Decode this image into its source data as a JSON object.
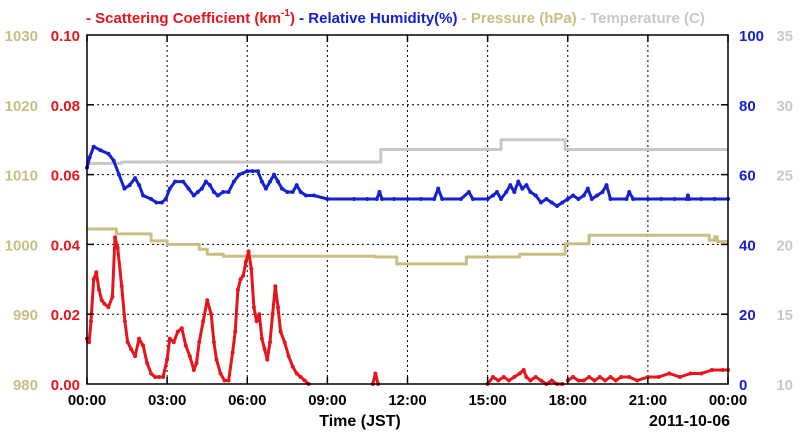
{
  "legend": {
    "scattering": "Scattering Coefficient (km",
    "scattering_sup": "-1",
    "scattering_close": ")",
    "humidity": "Relative Humidity(%)",
    "pressure": "Pressure (hPa)",
    "temperature": "Temperature (",
    "temperature_unit": "C)"
  },
  "footer": {
    "xlabel": "Time (JST)",
    "date": "2011-10-06"
  },
  "chart_data": {
    "type": "line",
    "x_ticks": [
      "00:00",
      "03:00",
      "06:00",
      "09:00",
      "12:00",
      "15:00",
      "18:00",
      "21:00",
      "00:00"
    ],
    "xlim_hours": [
      0,
      24
    ],
    "axes": {
      "scattering": {
        "ticks": [
          "0.00",
          "0.02",
          "0.04",
          "0.06",
          "0.08",
          "0.10"
        ],
        "ylim": [
          0,
          0.1
        ],
        "color": "#e8141c",
        "side": "left-inner"
      },
      "pressure": {
        "ticks": [
          "980",
          "990",
          "1000",
          "1010",
          "1020",
          "1030"
        ],
        "ylim": [
          980,
          1030
        ],
        "color": "#c8bd82",
        "side": "left-outer"
      },
      "humidity": {
        "ticks": [
          "0",
          "20",
          "40",
          "60",
          "80",
          "100"
        ],
        "ylim": [
          0,
          100
        ],
        "color": "#1420d2",
        "side": "right-inner"
      },
      "temperature": {
        "ticks": [
          "10",
          "15",
          "20",
          "25",
          "30",
          "35"
        ],
        "ylim": [
          10,
          35
        ],
        "color": "#c8c8c8",
        "side": "right-outer"
      }
    },
    "grid": true,
    "series": [
      {
        "key": "pressure",
        "name": "Pressure (hPa)",
        "color": "#c8bd82",
        "markers": false,
        "points": [
          [
            0,
            1002.2
          ],
          [
            1.1,
            1002.2
          ],
          [
            1.1,
            1001.5
          ],
          [
            2.4,
            1001.5
          ],
          [
            2.4,
            1000.5
          ],
          [
            3.0,
            1000.5
          ],
          [
            3.0,
            1000.0
          ],
          [
            4.2,
            1000.0
          ],
          [
            4.2,
            999.3
          ],
          [
            4.5,
            999.3
          ],
          [
            4.5,
            998.6
          ],
          [
            5.1,
            998.6
          ],
          [
            5.1,
            998.3
          ],
          [
            10.8,
            998.3
          ],
          [
            10.8,
            998.2
          ],
          [
            11.6,
            998.2
          ],
          [
            11.6,
            997.2
          ],
          [
            14.2,
            997.2
          ],
          [
            14.2,
            998.2
          ],
          [
            16.2,
            998.2
          ],
          [
            16.2,
            998.6
          ],
          [
            17.9,
            998.6
          ],
          [
            17.9,
            1000.1
          ],
          [
            18.8,
            1000.1
          ],
          [
            18.8,
            1001.3
          ],
          [
            23.3,
            1001.3
          ],
          [
            23.3,
            1000.6
          ],
          [
            23.5,
            1000.6
          ],
          [
            23.5,
            1001.1
          ],
          [
            23.6,
            1001.1
          ],
          [
            23.6,
            1000.4
          ],
          [
            24,
            1000.4
          ]
        ]
      },
      {
        "key": "temperature",
        "name": "Temperature (C)",
        "color": "#c8c8c8",
        "markers": false,
        "points": [
          [
            0,
            25.8
          ],
          [
            1.3,
            25.8
          ],
          [
            1.3,
            25.9
          ],
          [
            11.0,
            25.9
          ],
          [
            11.0,
            26.8
          ],
          [
            15.5,
            26.8
          ],
          [
            15.5,
            27.5
          ],
          [
            17.9,
            27.5
          ],
          [
            17.9,
            26.8
          ],
          [
            24,
            26.8
          ]
        ]
      },
      {
        "key": "humidity",
        "name": "Relative Humidity(%)",
        "color": "#1420d2",
        "markers": true,
        "points": [
          [
            0,
            62
          ],
          [
            0.1,
            65
          ],
          [
            0.25,
            68
          ],
          [
            0.5,
            67
          ],
          [
            0.8,
            66
          ],
          [
            1.0,
            64
          ],
          [
            1.2,
            60
          ],
          [
            1.4,
            56
          ],
          [
            1.6,
            57
          ],
          [
            1.8,
            59
          ],
          [
            1.95,
            57
          ],
          [
            2.1,
            54
          ],
          [
            2.4,
            53
          ],
          [
            2.6,
            52
          ],
          [
            2.8,
            52
          ],
          [
            2.95,
            53
          ],
          [
            3.1,
            56
          ],
          [
            3.3,
            58
          ],
          [
            3.6,
            58
          ],
          [
            3.8,
            56
          ],
          [
            4.0,
            54
          ],
          [
            4.15,
            55
          ],
          [
            4.3,
            56
          ],
          [
            4.45,
            58
          ],
          [
            4.6,
            57
          ],
          [
            4.75,
            55
          ],
          [
            4.9,
            54
          ],
          [
            5.1,
            55
          ],
          [
            5.3,
            55
          ],
          [
            5.5,
            58
          ],
          [
            5.7,
            60
          ],
          [
            6.0,
            61
          ],
          [
            6.2,
            61
          ],
          [
            6.4,
            61
          ],
          [
            6.55,
            58
          ],
          [
            6.7,
            56
          ],
          [
            6.85,
            58
          ],
          [
            7.0,
            60
          ],
          [
            7.15,
            58
          ],
          [
            7.3,
            56
          ],
          [
            7.5,
            55
          ],
          [
            7.7,
            55
          ],
          [
            7.85,
            57
          ],
          [
            8.0,
            55
          ],
          [
            8.2,
            54
          ],
          [
            8.5,
            54
          ],
          [
            9.0,
            53
          ],
          [
            10.0,
            53
          ],
          [
            10.5,
            53
          ],
          [
            10.85,
            53
          ],
          [
            10.95,
            55
          ],
          [
            11.05,
            53
          ],
          [
            11.5,
            53
          ],
          [
            12.0,
            53
          ],
          [
            12.5,
            53
          ],
          [
            13.0,
            53
          ],
          [
            13.15,
            56
          ],
          [
            13.3,
            53
          ],
          [
            14.0,
            53
          ],
          [
            14.3,
            55
          ],
          [
            14.45,
            53
          ],
          [
            15.0,
            53
          ],
          [
            15.2,
            54
          ],
          [
            15.35,
            55
          ],
          [
            15.5,
            53
          ],
          [
            15.7,
            55
          ],
          [
            15.85,
            57
          ],
          [
            16.0,
            55
          ],
          [
            16.15,
            58
          ],
          [
            16.3,
            56
          ],
          [
            16.45,
            57
          ],
          [
            16.6,
            55
          ],
          [
            16.8,
            54
          ],
          [
            17.0,
            52
          ],
          [
            17.2,
            53
          ],
          [
            17.4,
            52
          ],
          [
            17.6,
            51
          ],
          [
            17.8,
            52
          ],
          [
            18.0,
            53
          ],
          [
            18.2,
            54
          ],
          [
            18.4,
            53
          ],
          [
            18.6,
            54
          ],
          [
            18.75,
            56
          ],
          [
            18.9,
            53
          ],
          [
            19.1,
            54
          ],
          [
            19.3,
            55
          ],
          [
            19.45,
            57
          ],
          [
            19.6,
            53
          ],
          [
            20.2,
            53
          ],
          [
            20.3,
            55
          ],
          [
            20.45,
            53
          ],
          [
            21.0,
            53
          ],
          [
            21.5,
            53
          ],
          [
            22.0,
            53
          ],
          [
            22.45,
            53
          ],
          [
            22.5,
            54
          ],
          [
            22.55,
            53
          ],
          [
            23.0,
            53
          ],
          [
            23.5,
            53
          ],
          [
            24.0,
            53
          ]
        ]
      },
      {
        "key": "scattering",
        "name": "Scattering Coefficient (km-1)",
        "color": "#e8141c",
        "markers": true,
        "segments": [
          [
            [
              0,
              0.013
            ],
            [
              0.08,
              0.012
            ],
            [
              0.15,
              0.018
            ],
            [
              0.25,
              0.03
            ],
            [
              0.35,
              0.032
            ],
            [
              0.45,
              0.027
            ],
            [
              0.55,
              0.024
            ],
            [
              0.65,
              0.023
            ],
            [
              0.8,
              0.022
            ],
            [
              0.95,
              0.025
            ],
            [
              1.05,
              0.042
            ],
            [
              1.15,
              0.039
            ],
            [
              1.3,
              0.028
            ],
            [
              1.42,
              0.018
            ],
            [
              1.52,
              0.012
            ],
            [
              1.65,
              0.01
            ],
            [
              1.8,
              0.008
            ],
            [
              1.95,
              0.013
            ],
            [
              2.1,
              0.011
            ],
            [
              2.25,
              0.006
            ],
            [
              2.4,
              0.003
            ],
            [
              2.55,
              0.002
            ],
            [
              2.7,
              0.002
            ],
            [
              2.85,
              0.002
            ],
            [
              3.0,
              0.007
            ],
            [
              3.1,
              0.013
            ],
            [
              3.25,
              0.012
            ],
            [
              3.4,
              0.015
            ],
            [
              3.55,
              0.016
            ],
            [
              3.7,
              0.011
            ],
            [
              3.85,
              0.008
            ],
            [
              4.0,
              0.004
            ],
            [
              4.1,
              0.006
            ],
            [
              4.2,
              0.012
            ],
            [
              4.35,
              0.018
            ],
            [
              4.5,
              0.024
            ],
            [
              4.65,
              0.02
            ],
            [
              4.75,
              0.012
            ],
            [
              4.85,
              0.007
            ],
            [
              5.0,
              0.003
            ],
            [
              5.15,
              0.001
            ],
            [
              5.3,
              0.001
            ],
            [
              5.45,
              0.009
            ],
            [
              5.55,
              0.015
            ],
            [
              5.65,
              0.027
            ],
            [
              5.75,
              0.03
            ],
            [
              5.85,
              0.031
            ],
            [
              5.95,
              0.035
            ],
            [
              6.05,
              0.038
            ],
            [
              6.15,
              0.033
            ],
            [
              6.25,
              0.022
            ],
            [
              6.35,
              0.018
            ],
            [
              6.45,
              0.02
            ],
            [
              6.55,
              0.013
            ],
            [
              6.65,
              0.01
            ],
            [
              6.75,
              0.007
            ],
            [
              6.85,
              0.012
            ],
            [
              6.95,
              0.02
            ],
            [
              7.05,
              0.028
            ],
            [
              7.15,
              0.022
            ],
            [
              7.25,
              0.015
            ],
            [
              7.4,
              0.012
            ],
            [
              7.55,
              0.008
            ],
            [
              7.7,
              0.005
            ],
            [
              7.85,
              0.003
            ],
            [
              8.0,
              0.002
            ],
            [
              8.15,
              0.001
            ],
            [
              8.3,
              0.0
            ]
          ],
          [
            [
              10.7,
              0.0
            ],
            [
              10.8,
              0.003
            ],
            [
              10.9,
              0.0
            ]
          ],
          [
            [
              15.0,
              0.0
            ],
            [
              15.2,
              0.002
            ],
            [
              15.4,
              0.001
            ],
            [
              15.6,
              0.002
            ],
            [
              15.8,
              0.001
            ],
            [
              16.0,
              0.002
            ],
            [
              16.2,
              0.003
            ],
            [
              16.35,
              0.004
            ],
            [
              16.45,
              0.002
            ],
            [
              16.6,
              0.001
            ],
            [
              16.8,
              0.002
            ],
            [
              17.0,
              0.001
            ],
            [
              17.2,
              0.0
            ],
            [
              17.4,
              0.001
            ],
            [
              17.6,
              0.0
            ],
            [
              17.8,
              0.0
            ]
          ],
          [
            [
              18.0,
              0.001
            ],
            [
              18.2,
              0.002
            ],
            [
              18.4,
              0.001
            ],
            [
              18.6,
              0.001
            ],
            [
              18.8,
              0.002
            ],
            [
              19.0,
              0.001
            ],
            [
              19.2,
              0.002
            ],
            [
              19.4,
              0.001
            ],
            [
              19.6,
              0.002
            ],
            [
              19.8,
              0.001
            ],
            [
              20.0,
              0.002
            ],
            [
              20.3,
              0.002
            ],
            [
              20.6,
              0.001
            ],
            [
              21.0,
              0.002
            ],
            [
              21.4,
              0.002
            ],
            [
              21.8,
              0.003
            ],
            [
              22.2,
              0.002
            ],
            [
              22.6,
              0.003
            ],
            [
              23.0,
              0.003
            ],
            [
              23.4,
              0.004
            ],
            [
              23.8,
              0.004
            ],
            [
              24.0,
              0.004
            ]
          ]
        ]
      }
    ]
  }
}
